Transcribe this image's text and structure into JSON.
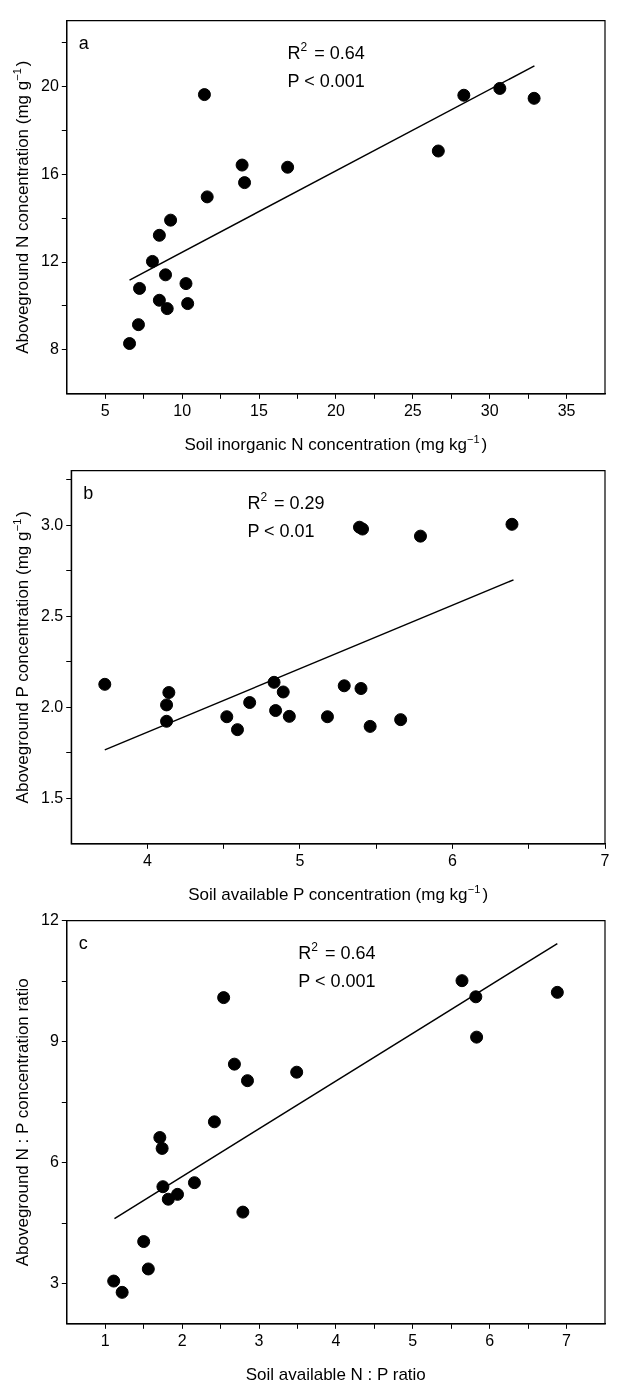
{
  "chart_data": [
    {
      "type": "scatter",
      "xlabel": "Soil inorganic N concentration (mg kg$^{−1}$)",
      "ylabel": "Aboveground N concentration (mg g$^{−1}$)",
      "annotations": [
        "a",
        "R$^{2}$ = 0.64",
        "P < 0.001"
      ],
      "xlim": [
        2.5,
        37.5
      ],
      "xticks": [
        5,
        {
          "value": 7.5,
          "label": null
        },
        10,
        {
          "value": 12.5,
          "label": null
        },
        15,
        {
          "value": 17.5,
          "label": null
        },
        20,
        {
          "value": 22.5,
          "label": null
        },
        25,
        {
          "value": 27.5,
          "label": null
        },
        30,
        {
          "value": 32.5,
          "label": null
        },
        35
      ],
      "ylim": [
        6,
        23
      ],
      "yticks": [
        8,
        {
          "value": 10,
          "label": null
        },
        12,
        {
          "value": 14,
          "label": null
        },
        16,
        {
          "value": 18,
          "label": null
        },
        20,
        {
          "value": 22,
          "label": null
        }
      ],
      "series": [
        {
          "type": "scatter",
          "marker": "circle",
          "color": "#000000",
          "x": [
            6.58,
            7.16,
            7.23,
            8.07,
            8.52,
            8.52,
            8.92,
            9.03,
            9.25,
            10.25,
            10.36,
            11.45,
            11.63,
            13.9,
            14.06,
            16.86,
            26.66,
            28.32,
            30.66,
            32.89
          ],
          "values": [
            8.29,
            9.15,
            10.8,
            12.03,
            10.26,
            13.22,
            11.42,
            9.88,
            13.91,
            11.02,
            10.11,
            19.63,
            14.97,
            16.42,
            15.62,
            16.32,
            17.06,
            19.6,
            19.91,
            19.46
          ]
        },
        {
          "type": "line",
          "color": "#000000",
          "x": [
            6.58,
            32.91
          ],
          "values": [
            11.18,
            20.94
          ]
        }
      ]
    },
    {
      "type": "scatter",
      "xlabel": "Soil available P concentration (mg kg$^{−1}$)",
      "ylabel": "Aboveground P concentration (mg g$^{−1}$)",
      "annotations": [
        "b",
        "R$^{2}$ = 0.29",
        "P < 0.01"
      ],
      "xlim": [
        3.5,
        7
      ],
      "xticks": [
        4,
        {
          "value": 4.5,
          "label": null
        },
        5,
        {
          "value": 5.5,
          "label": null
        },
        6,
        {
          "value": 6.5,
          "label": null
        },
        7
      ],
      "ylim": [
        1.25,
        3.3
      ],
      "yticks": [
        {
          "value": 1.5,
          "label": "1.5"
        },
        {
          "value": 1.75,
          "label": null
        },
        {
          "value": 2,
          "label": "2.0"
        },
        {
          "value": 2.25,
          "label": null
        },
        {
          "value": 2.5,
          "label": "2.5"
        },
        {
          "value": 2.75,
          "label": null
        },
        {
          "value": 3,
          "label": "3.0"
        },
        {
          "value": 3.25,
          "label": null
        }
      ],
      "series": [
        {
          "type": "scatter",
          "marker": "circle",
          "color": "#000000",
          "x": [
            3.72,
            4.14,
            4.125,
            4.125,
            4.52,
            4.59,
            4.67,
            4.83,
            4.84,
            4.89,
            4.93,
            5.18,
            5.29,
            5.4,
            5.46,
            5.66,
            5.39,
            5.41,
            5.79,
            6.39
          ],
          "values": [
            2.126,
            2.081,
            2.013,
            1.923,
            1.948,
            1.877,
            2.026,
            2.137,
            1.982,
            2.084,
            1.95,
            1.948,
            2.118,
            2.103,
            1.895,
            1.932,
            2.989,
            2.979,
            2.94,
            3.005
          ]
        },
        {
          "type": "line",
          "color": "#000000",
          "x": [
            3.72,
            6.4
          ],
          "values": [
            1.766,
            2.7
          ]
        }
      ]
    },
    {
      "type": "scatter",
      "xlabel": "Soil available N : P ratio",
      "ylabel": "Aboveground N : P concentration ratio",
      "annotations": [
        "c",
        "R$^{2}$ = 0.64",
        "P < 0.001"
      ],
      "xlim": [
        0.5,
        7.5
      ],
      "xticks": [
        1,
        {
          "value": 1.5,
          "label": null
        },
        2,
        {
          "value": 2.5,
          "label": null
        },
        3,
        {
          "value": 3.5,
          "label": null
        },
        4,
        {
          "value": 4.5,
          "label": null
        },
        5,
        {
          "value": 5.5,
          "label": null
        },
        6,
        {
          "value": 6.5,
          "label": null
        },
        7
      ],
      "ylim": [
        2,
        12
      ],
      "yticks": [
        3,
        {
          "value": 4.5,
          "label": null
        },
        6,
        {
          "value": 7.5,
          "label": null
        },
        9,
        {
          "value": 10.5,
          "label": null
        },
        12
      ],
      "series": [
        {
          "type": "scatter",
          "marker": "circle",
          "color": "#000000",
          "x": [
            1.11,
            1.22,
            1.5,
            1.56,
            1.71,
            1.74,
            1.75,
            1.82,
            1.94,
            2.16,
            2.42,
            2.54,
            2.68,
            2.79,
            2.85,
            3.49,
            5.64,
            5.82,
            5.83,
            6.88
          ],
          "values": [
            3.06,
            2.78,
            4.04,
            3.36,
            6.62,
            6.35,
            5.4,
            5.09,
            5.21,
            5.5,
            7.01,
            10.09,
            8.44,
            4.77,
            8.03,
            8.24,
            10.51,
            10.11,
            9.11,
            10.22
          ]
        },
        {
          "type": "line",
          "color": "#000000",
          "x": [
            1.12,
            6.88
          ],
          "values": [
            4.61,
            11.43
          ]
        }
      ]
    }
  ]
}
